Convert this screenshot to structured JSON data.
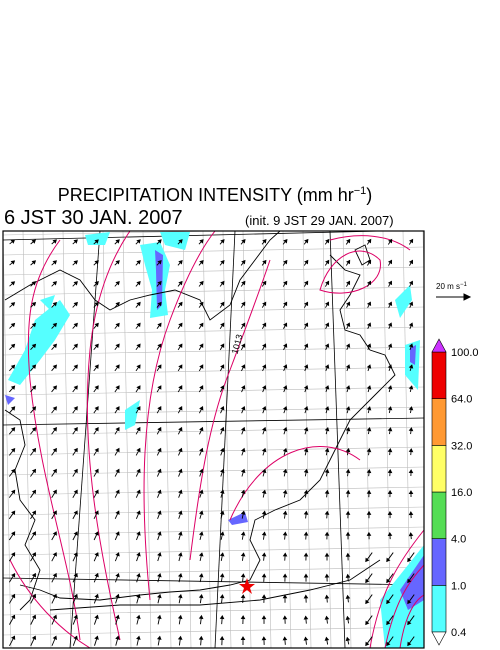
{
  "header": {
    "title": {
      "text": "PRECIPITATION INTENSITY (mm hr",
      "superscript": "−1",
      "suffix": ")"
    },
    "valid_time": "6 JST 30 JAN. 2007",
    "init_time": "(init. 9 JST 29 JAN. 2007)"
  },
  "map": {
    "contour_label": "1013",
    "vector_reference": {
      "text": "20 m s",
      "superscript": "−1"
    }
  },
  "colorbar": {
    "levels": [
      "0.4",
      "1.0",
      "4.0",
      "16.0",
      "32.0",
      "64.0",
      "100.0"
    ],
    "colors": [
      "#55ffff",
      "#6666ff",
      "#55dd55",
      "#ffff66",
      "#ff9933",
      "#ee0000"
    ],
    "over_color": "#cc33ff",
    "under_color": "#ffffff"
  }
}
